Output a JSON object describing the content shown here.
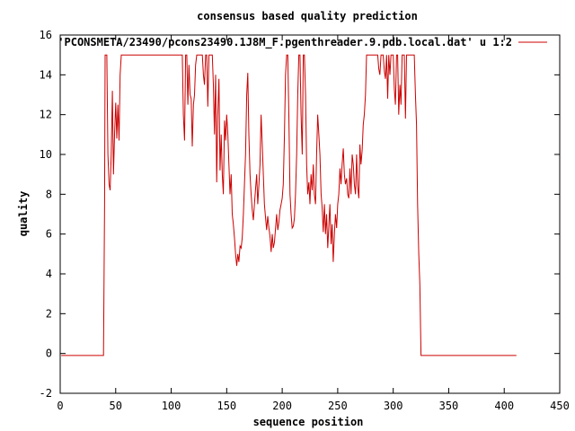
{
  "chart_data": {
    "type": "line",
    "title": "consensus based quality prediction",
    "xlabel": "sequence position",
    "ylabel": "quality",
    "xlim": [
      0,
      450
    ],
    "ylim": [
      -2,
      16
    ],
    "xticks": [
      0,
      50,
      100,
      150,
      200,
      250,
      300,
      350,
      400,
      450
    ],
    "yticks": [
      -2,
      0,
      2,
      4,
      6,
      8,
      10,
      12,
      14,
      16
    ],
    "grid": false,
    "legend_position": "top-right",
    "series": [
      {
        "name": "'PCONSMETA/23490/pcons23490.1J8M_F.pgenthreader.9.pdb.local.dat' u 1:2",
        "color": "#cc0000",
        "points": [
          [
            1,
            -0.1
          ],
          [
            39,
            -0.1
          ],
          [
            40,
            7.5
          ],
          [
            40.5,
            15
          ],
          [
            41,
            15
          ],
          [
            42,
            15
          ],
          [
            43,
            10
          ],
          [
            44,
            8.5
          ],
          [
            45,
            8.2
          ],
          [
            46,
            10
          ],
          [
            47,
            13.2
          ],
          [
            48,
            9
          ],
          [
            49,
            11
          ],
          [
            50,
            12.6
          ],
          [
            51,
            10.8
          ],
          [
            52,
            12.5
          ],
          [
            53,
            10.7
          ],
          [
            54,
            14
          ],
          [
            55,
            15
          ],
          [
            110,
            15
          ],
          [
            111,
            12
          ],
          [
            112,
            10.7
          ],
          [
            113,
            15
          ],
          [
            114,
            15
          ],
          [
            115,
            12.5
          ],
          [
            116,
            14.5
          ],
          [
            117,
            13
          ],
          [
            118,
            12.8
          ],
          [
            119,
            10.4
          ],
          [
            120,
            12.5
          ],
          [
            121,
            13
          ],
          [
            122,
            14.5
          ],
          [
            123,
            15
          ],
          [
            128,
            15
          ],
          [
            129,
            14
          ],
          [
            130,
            13.5
          ],
          [
            131,
            15
          ],
          [
            132,
            15
          ],
          [
            133,
            12.4
          ],
          [
            134,
            15
          ],
          [
            137,
            15
          ],
          [
            138,
            13.5
          ],
          [
            139,
            11
          ],
          [
            140,
            14
          ],
          [
            141,
            8.6
          ],
          [
            142,
            12
          ],
          [
            143,
            13.8
          ],
          [
            144,
            9.2
          ],
          [
            145,
            11
          ],
          [
            146,
            9
          ],
          [
            147,
            8
          ],
          [
            148,
            11.7
          ],
          [
            149,
            10.7
          ],
          [
            150,
            12
          ],
          [
            151,
            11
          ],
          [
            152,
            9.5
          ],
          [
            153,
            8
          ],
          [
            154,
            9
          ],
          [
            155,
            7
          ],
          [
            156,
            6.5
          ],
          [
            157,
            5.8
          ],
          [
            158,
            5
          ],
          [
            159,
            4.4
          ],
          [
            160,
            5
          ],
          [
            161,
            4.6
          ],
          [
            162,
            5.4
          ],
          [
            163,
            5.3
          ],
          [
            164,
            5.8
          ],
          [
            165,
            7
          ],
          [
            166,
            8.5
          ],
          [
            167,
            10
          ],
          [
            168,
            13
          ],
          [
            169,
            14.1
          ],
          [
            170,
            11
          ],
          [
            171,
            9
          ],
          [
            172,
            8
          ],
          [
            173,
            7.2
          ],
          [
            174,
            6.7
          ],
          [
            175,
            7.5
          ],
          [
            176,
            8.3
          ],
          [
            177,
            9
          ],
          [
            178,
            7.5
          ],
          [
            179,
            8.5
          ],
          [
            180,
            9.5
          ],
          [
            181,
            12
          ],
          [
            182,
            10.5
          ],
          [
            183,
            9
          ],
          [
            184,
            7.5
          ],
          [
            185,
            6.8
          ],
          [
            186,
            6.2
          ],
          [
            187,
            6.9
          ],
          [
            188,
            6.3
          ],
          [
            189,
            5.9
          ],
          [
            190,
            5.1
          ],
          [
            191,
            6
          ],
          [
            192,
            5.3
          ],
          [
            193,
            5.6
          ],
          [
            194,
            6.3
          ],
          [
            195,
            7
          ],
          [
            196,
            6.2
          ],
          [
            197,
            6.6
          ],
          [
            198,
            7.2
          ],
          [
            199,
            7.5
          ],
          [
            200,
            7.8
          ],
          [
            201,
            8.5
          ],
          [
            202,
            11
          ],
          [
            203,
            14
          ],
          [
            204,
            15
          ],
          [
            205,
            15
          ],
          [
            206,
            12
          ],
          [
            207,
            8
          ],
          [
            208,
            7
          ],
          [
            209,
            6.3
          ],
          [
            210,
            6.4
          ],
          [
            211,
            6.8
          ],
          [
            212,
            8
          ],
          [
            213,
            10
          ],
          [
            214,
            13
          ],
          [
            215,
            15
          ],
          [
            216,
            15
          ],
          [
            217,
            12
          ],
          [
            218,
            10
          ],
          [
            219,
            15
          ],
          [
            220,
            15
          ],
          [
            221,
            13
          ],
          [
            222,
            9.5
          ],
          [
            223,
            8
          ],
          [
            224,
            8.6
          ],
          [
            225,
            7.5
          ],
          [
            226,
            9
          ],
          [
            227,
            8.2
          ],
          [
            228,
            9.5
          ],
          [
            229,
            8
          ],
          [
            230,
            7.5
          ],
          [
            231,
            10
          ],
          [
            232,
            12
          ],
          [
            233,
            11
          ],
          [
            234,
            10
          ],
          [
            235,
            8
          ],
          [
            236,
            7.3
          ],
          [
            237,
            6.1
          ],
          [
            238,
            7.5
          ],
          [
            239,
            6
          ],
          [
            240,
            7
          ],
          [
            241,
            5.3
          ],
          [
            242,
            6.4
          ],
          [
            243,
            7.5
          ],
          [
            244,
            5.5
          ],
          [
            245,
            6.5
          ],
          [
            246,
            4.6
          ],
          [
            247,
            6
          ],
          [
            248,
            7
          ],
          [
            249,
            6.3
          ],
          [
            250,
            7.5
          ],
          [
            251,
            8
          ],
          [
            252,
            9.3
          ],
          [
            253,
            8.5
          ],
          [
            254,
            9.5
          ],
          [
            255,
            10.3
          ],
          [
            256,
            9
          ],
          [
            257,
            8.5
          ],
          [
            258,
            8.8
          ],
          [
            259,
            8
          ],
          [
            260,
            7.8
          ],
          [
            261,
            9.3
          ],
          [
            262,
            8
          ],
          [
            263,
            10
          ],
          [
            264,
            9.5
          ],
          [
            265,
            8.5
          ],
          [
            266,
            8
          ],
          [
            267,
            10
          ],
          [
            268,
            8.4
          ],
          [
            269,
            7.8
          ],
          [
            270,
            10.5
          ],
          [
            271,
            9.5
          ],
          [
            272,
            10.2
          ],
          [
            273,
            11.5
          ],
          [
            274,
            12
          ],
          [
            275,
            13
          ],
          [
            276,
            15
          ],
          [
            277,
            15
          ],
          [
            286,
            15
          ],
          [
            287,
            14.3
          ],
          [
            288,
            14
          ],
          [
            289,
            15
          ],
          [
            291,
            15
          ],
          [
            292,
            14.2
          ],
          [
            293,
            13.8
          ],
          [
            294,
            15
          ],
          [
            295,
            12.8
          ],
          [
            296,
            15
          ],
          [
            297,
            14
          ],
          [
            298,
            15
          ],
          [
            300,
            15
          ],
          [
            301,
            13.3
          ],
          [
            302,
            12.5
          ],
          [
            303,
            15
          ],
          [
            304,
            15
          ],
          [
            305,
            12
          ],
          [
            306,
            13.5
          ],
          [
            307,
            12.5
          ],
          [
            308,
            15
          ],
          [
            310,
            15
          ],
          [
            311,
            11.8
          ],
          [
            312,
            15
          ],
          [
            313,
            15
          ],
          [
            319,
            15
          ],
          [
            320,
            13
          ],
          [
            321,
            11.5
          ],
          [
            322,
            7.5
          ],
          [
            323,
            5
          ],
          [
            324,
            3.5
          ],
          [
            325,
            -0.1
          ],
          [
            411,
            -0.1
          ]
        ]
      }
    ]
  }
}
